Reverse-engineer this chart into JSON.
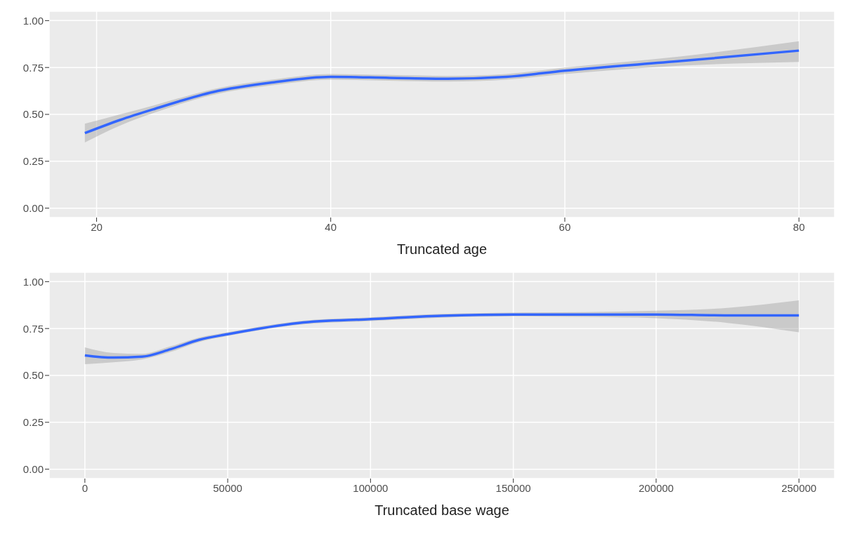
{
  "chart_data": [
    {
      "type": "line",
      "xlabel": "Truncated age",
      "x": [
        19,
        22,
        25,
        30,
        35,
        40,
        45,
        50,
        55,
        60,
        70,
        80
      ],
      "xlim": [
        15.95,
        83.05
      ],
      "xticks": [
        20,
        40,
        60,
        80
      ],
      "ylim": [
        -0.05,
        1.05
      ],
      "yticks": [
        {
          "value": 0,
          "label": "0.00"
        },
        {
          "value": 0.25,
          "label": "0.25"
        },
        {
          "value": 0.5,
          "label": "0.50"
        },
        {
          "value": 0.75,
          "label": "0.75"
        },
        {
          "value": 1,
          "label": "1.00"
        }
      ],
      "grid": true,
      "marker": "none",
      "line_style": "solid",
      "series": [
        {
          "color": "#3366ff",
          "values": [
            0.4,
            0.47,
            0.53,
            0.62,
            0.67,
            0.7,
            0.695,
            0.69,
            0.7,
            0.733,
            0.785,
            0.84
          ],
          "lower": [
            0.35,
            0.44,
            0.51,
            0.605,
            0.655,
            0.685,
            0.68,
            0.675,
            0.685,
            0.715,
            0.76,
            0.78
          ],
          "upper": [
            0.45,
            0.5,
            0.55,
            0.635,
            0.685,
            0.715,
            0.71,
            0.705,
            0.715,
            0.75,
            0.81,
            0.89
          ]
        }
      ]
    },
    {
      "type": "line",
      "xlabel": "Truncated base wage",
      "x": [
        0,
        10000,
        20000,
        30000,
        40000,
        50000,
        75000,
        100000,
        125000,
        150000,
        175000,
        200000,
        225000,
        250000
      ],
      "xlim": [
        -12500,
        262500
      ],
      "xticks": [
        0,
        50000,
        100000,
        150000,
        200000,
        250000
      ],
      "ylim": [
        -0.05,
        1.05
      ],
      "yticks": [
        {
          "value": 0,
          "label": "0.00"
        },
        {
          "value": 0.25,
          "label": "0.25"
        },
        {
          "value": 0.5,
          "label": "0.50"
        },
        {
          "value": 0.75,
          "label": "0.75"
        },
        {
          "value": 1,
          "label": "1.00"
        }
      ],
      "grid": true,
      "marker": "none",
      "line_style": "solid",
      "series": [
        {
          "color": "#3366ff",
          "values": [
            0.607,
            0.595,
            0.6,
            0.64,
            0.69,
            0.72,
            0.78,
            0.8,
            0.818,
            0.825,
            0.825,
            0.825,
            0.82,
            0.82
          ],
          "lower": [
            0.56,
            0.57,
            0.585,
            0.625,
            0.678,
            0.71,
            0.77,
            0.79,
            0.808,
            0.815,
            0.812,
            0.805,
            0.78,
            0.73
          ],
          "upper": [
            0.65,
            0.62,
            0.615,
            0.655,
            0.702,
            0.73,
            0.79,
            0.81,
            0.828,
            0.835,
            0.838,
            0.845,
            0.86,
            0.9
          ]
        }
      ]
    }
  ]
}
